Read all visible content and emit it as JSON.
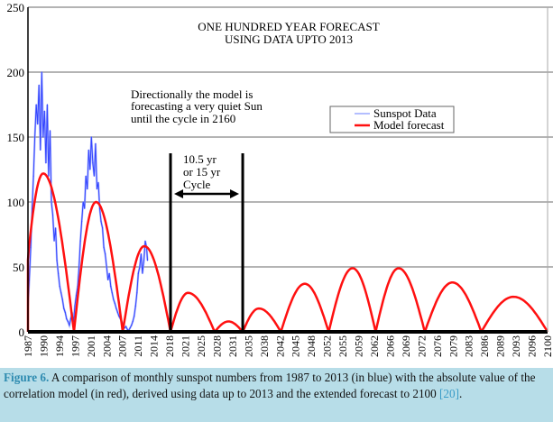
{
  "chart_data": {
    "type": "line",
    "title": "ONE HUNDRED YEAR FORECAST",
    "subtitle": "USING DATA UPTO 2013",
    "xlabel": "",
    "ylabel": "",
    "ylim": [
      0,
      250
    ],
    "xlim": [
      1987,
      2100
    ],
    "yticks": [
      0,
      50,
      100,
      150,
      200,
      250
    ],
    "xtick_labels": [
      "1987",
      "1990",
      "1994",
      "1997",
      "2001",
      "2004",
      "2007",
      "2011",
      "2014",
      "2018",
      "2021",
      "2025",
      "2028",
      "2031",
      "2035",
      "2038",
      "2042",
      "2045",
      "2048",
      "2052",
      "2055",
      "2059",
      "2062",
      "2066",
      "2069",
      "2072",
      "2076",
      "2079",
      "2083",
      "2086",
      "2089",
      "2093",
      "2096",
      "2100"
    ],
    "grid": true,
    "legend": {
      "position": "top-right",
      "entries": [
        {
          "name": "Sunspot Data",
          "color": "#3344ff"
        },
        {
          "name": "Model forecast",
          "color": "#ff1010"
        }
      ]
    },
    "series": [
      {
        "name": "Model forecast",
        "color": "#ff1010",
        "arches": [
          {
            "start": 1985.5,
            "peak_x": 1990.3,
            "end": 1997.0,
            "peak": 122
          },
          {
            "start": 1997.0,
            "peak_x": 2001.8,
            "end": 2007.6,
            "peak": 100
          },
          {
            "start": 2007.6,
            "peak_x": 2012.3,
            "end": 2018.0,
            "peak": 66
          },
          {
            "start": 2018.0,
            "peak_x": 2021.8,
            "end": 2027.6,
            "peak": 30
          },
          {
            "start": 2027.6,
            "peak_x": 2030.6,
            "end": 2033.7,
            "peak": 8
          },
          {
            "start": 2033.7,
            "peak_x": 2037.2,
            "end": 2042.0,
            "peak": 18
          },
          {
            "start": 2042.0,
            "peak_x": 2047.2,
            "end": 2052.4,
            "peak": 37
          },
          {
            "start": 2052.4,
            "peak_x": 2057.6,
            "end": 2062.6,
            "peak": 49
          },
          {
            "start": 2062.6,
            "peak_x": 2067.6,
            "end": 2073.3,
            "peak": 49
          },
          {
            "start": 2073.3,
            "peak_x": 2079.3,
            "end": 2085.6,
            "peak": 38
          },
          {
            "start": 2085.6,
            "peak_x": 2092.6,
            "end": 2100.0,
            "peak": 27
          }
        ]
      },
      {
        "name": "Sunspot Data",
        "color": "#3344ff",
        "x": [
          1987.0,
          1987.3,
          1987.6,
          1987.9,
          1988.2,
          1988.5,
          1988.8,
          1989.1,
          1989.4,
          1989.7,
          1990.0,
          1990.3,
          1990.6,
          1990.9,
          1991.2,
          1991.5,
          1991.8,
          1992.1,
          1992.4,
          1992.7,
          1993.0,
          1993.3,
          1993.6,
          1993.9,
          1994.2,
          1994.5,
          1994.8,
          1995.1,
          1995.4,
          1995.7,
          1996.0,
          1996.3,
          1996.6,
          1996.9,
          1997.2,
          1997.5,
          1997.8,
          1998.1,
          1998.4,
          1998.7,
          1999.0,
          1999.3,
          1999.6,
          1999.9,
          2000.2,
          2000.5,
          2000.8,
          2001.1,
          2001.4,
          2001.7,
          2002.0,
          2002.3,
          2002.6,
          2002.9,
          2003.2,
          2003.5,
          2003.8,
          2004.1,
          2004.4,
          2004.7,
          2005.0,
          2005.3,
          2005.6,
          2005.9,
          2006.2,
          2006.5,
          2006.8,
          2007.1,
          2007.4,
          2007.7,
          2008.0,
          2008.3,
          2008.6,
          2008.9,
          2009.2,
          2009.5,
          2009.8,
          2010.1,
          2010.4,
          2010.7,
          2011.0,
          2011.3,
          2011.6,
          2011.9,
          2012.2,
          2012.5,
          2012.8,
          2013.0
        ],
        "values": [
          20,
          40,
          65,
          95,
          120,
          150,
          175,
          160,
          190,
          140,
          200,
          150,
          170,
          130,
          175,
          120,
          155,
          100,
          90,
          70,
          80,
          55,
          45,
          35,
          30,
          25,
          18,
          15,
          10,
          8,
          5,
          10,
          15,
          8,
          20,
          28,
          35,
          50,
          70,
          85,
          100,
          95,
          120,
          110,
          140,
          125,
          150,
          130,
          120,
          145,
          110,
          115,
          95,
          85,
          80,
          65,
          60,
          50,
          40,
          45,
          35,
          30,
          25,
          22,
          18,
          15,
          12,
          10,
          8,
          5,
          3,
          4,
          2,
          1,
          3,
          5,
          8,
          12,
          20,
          30,
          45,
          50,
          60,
          45,
          55,
          70,
          65,
          55
        ]
      }
    ],
    "annotations": [
      {
        "text_lines": [
          "Directionally the model is",
          "forecasting a very quiet Sun",
          "until the cycle in 2160"
        ]
      },
      {
        "text_lines": [
          "10.5 yr",
          "or 15 yr",
          "Cycle"
        ],
        "vertical_lines_at": [
          2018,
          2033.7
        ],
        "arrow": "double-headed between vertical lines"
      }
    ]
  },
  "caption": {
    "figure_label": "Figure 6.",
    "text": " A comparison of monthly sunspot numbers from 1987 to 2013 (in blue) with the absolute value of the correlation model (in red), derived using data up to 2013 and the extended forecast to 2100 ",
    "reference": "[20]",
    "end": "."
  }
}
